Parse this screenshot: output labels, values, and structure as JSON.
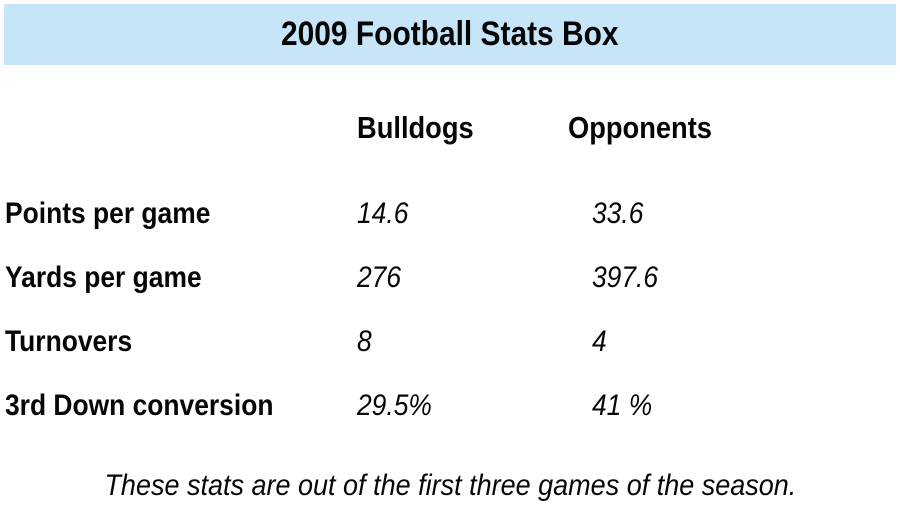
{
  "header": {
    "title": "2009 Football Stats Box",
    "background_color": "#c6e5f9",
    "text_color": "#060606"
  },
  "table": {
    "columns": [
      "Bulldogs",
      "Opponents"
    ],
    "rows": [
      {
        "label": "Points per game",
        "bulldogs": "14.6",
        "opponents": "33.6"
      },
      {
        "label": "Yards per game",
        "bulldogs": "276",
        "opponents": "397.6"
      },
      {
        "label": "Turnovers",
        "bulldogs": "8",
        "opponents": "4"
      },
      {
        "label": "3rd Down conversion",
        "bulldogs": "29.5%",
        "opponents": "41 %"
      }
    ]
  },
  "footnote": "These stats are out of the first three games of the season.",
  "chart_data": {
    "type": "table",
    "title": "2009 Football Stats Box",
    "columns": [
      "",
      "Bulldogs",
      "Opponents"
    ],
    "rows": [
      [
        "Points per game",
        "14.6",
        "33.6"
      ],
      [
        "Yards per game",
        "276",
        "397.6"
      ],
      [
        "Turnovers",
        "8",
        "4"
      ],
      [
        "3rd Down conversion",
        "29.5%",
        "41 %"
      ]
    ],
    "note": "These stats are out of the first three games of the season."
  }
}
